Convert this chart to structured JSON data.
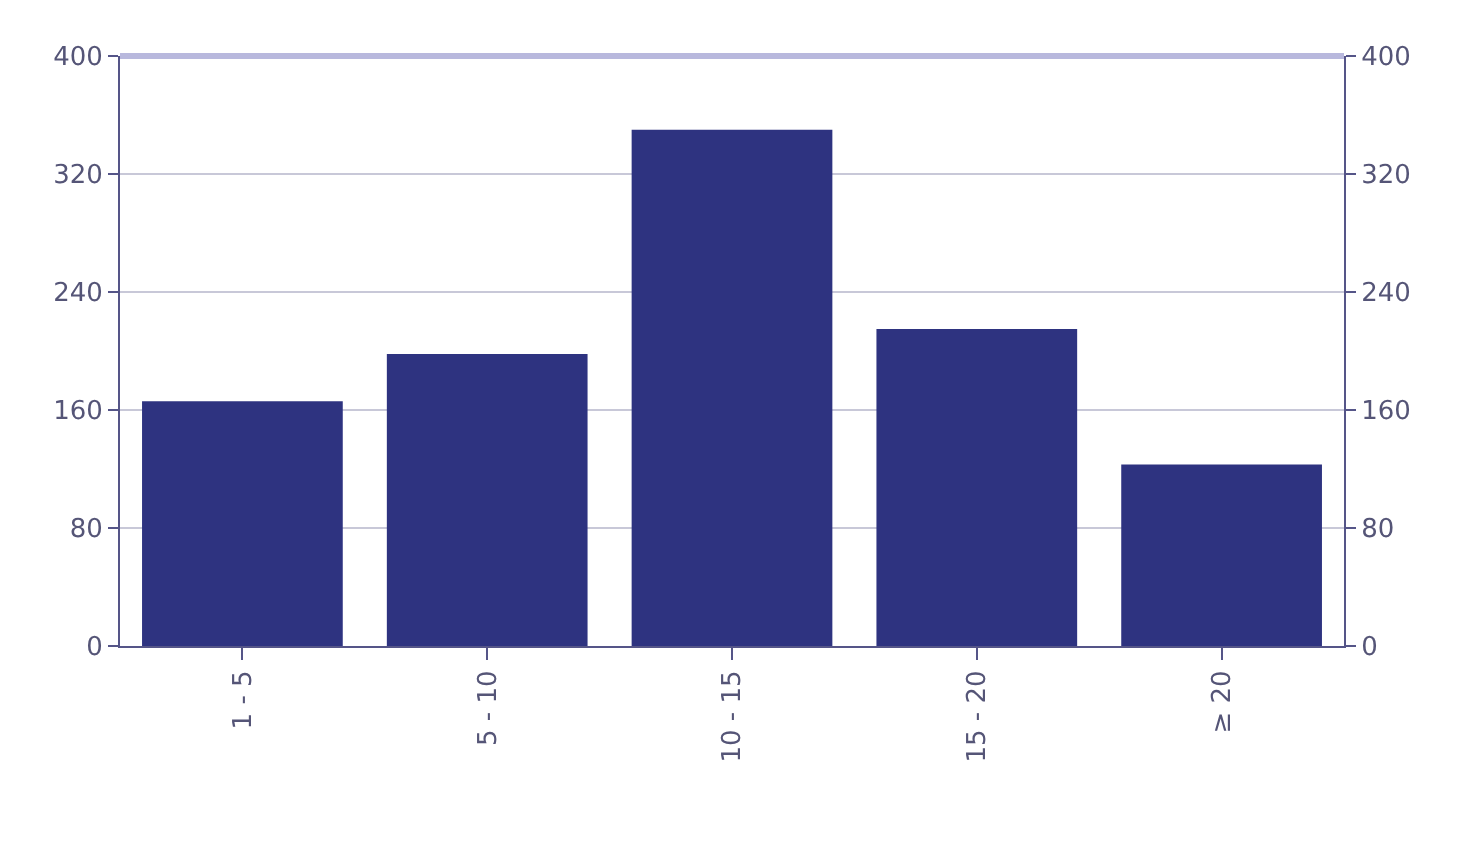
{
  "chart_data": {
    "type": "bar",
    "categories": [
      "1 - 5",
      "5 - 10",
      "10 - 15",
      "15 - 20",
      "≥ 20"
    ],
    "values": [
      166,
      198,
      350,
      215,
      123
    ],
    "color": "#2e3380",
    "ylim": [
      0,
      400
    ],
    "yticks": [
      0,
      80,
      160,
      240,
      320,
      400
    ],
    "y2lim": [
      0,
      400
    ],
    "y2ticks": [
      0,
      80,
      160,
      240,
      320,
      400
    ],
    "grid": "y"
  }
}
